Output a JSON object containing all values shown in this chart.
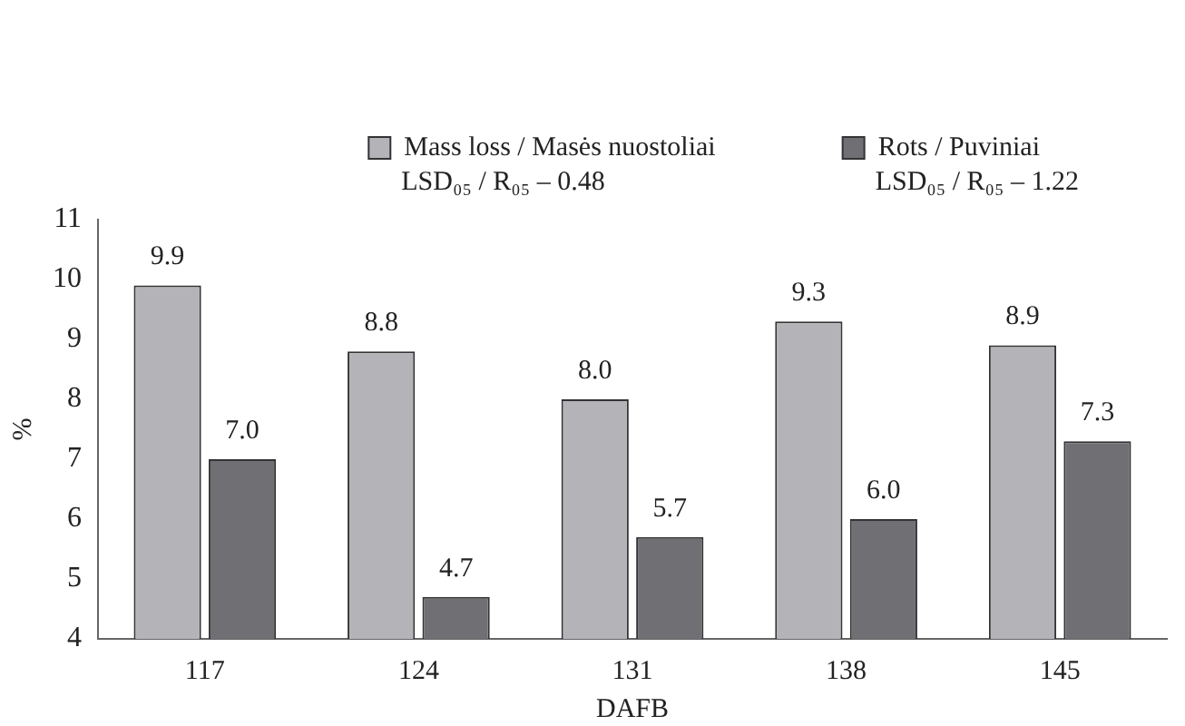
{
  "chart_data": {
    "type": "bar",
    "xlabel": "DAFB",
    "ylabel": "%",
    "categories": [
      "117",
      "124",
      "131",
      "138",
      "145"
    ],
    "series": [
      {
        "name": "Mass loss / Masės nuostoliai",
        "color": "#b4b4b8",
        "values": [
          9.9,
          8.8,
          8.0,
          9.3,
          8.9
        ],
        "value_labels": [
          "9.9",
          "8.8",
          "8.0",
          "9.3",
          "8.9"
        ]
      },
      {
        "name": "Rots / Puviniai",
        "color": "#707074",
        "values": [
          7.0,
          4.7,
          5.7,
          6.0,
          7.3
        ],
        "value_labels": [
          "7.0",
          "4.7",
          "5.7",
          "6.0",
          "7.3"
        ]
      }
    ],
    "annotations": [
      "LSD₀₅ / R₀₅ – 0.48",
      "LSD₀₅ / R₀₅ – 1.22"
    ],
    "ylim": [
      4,
      11
    ],
    "yticks": [
      4,
      5,
      6,
      7,
      8,
      9,
      10,
      11
    ],
    "grid": false,
    "legend": "top right"
  }
}
